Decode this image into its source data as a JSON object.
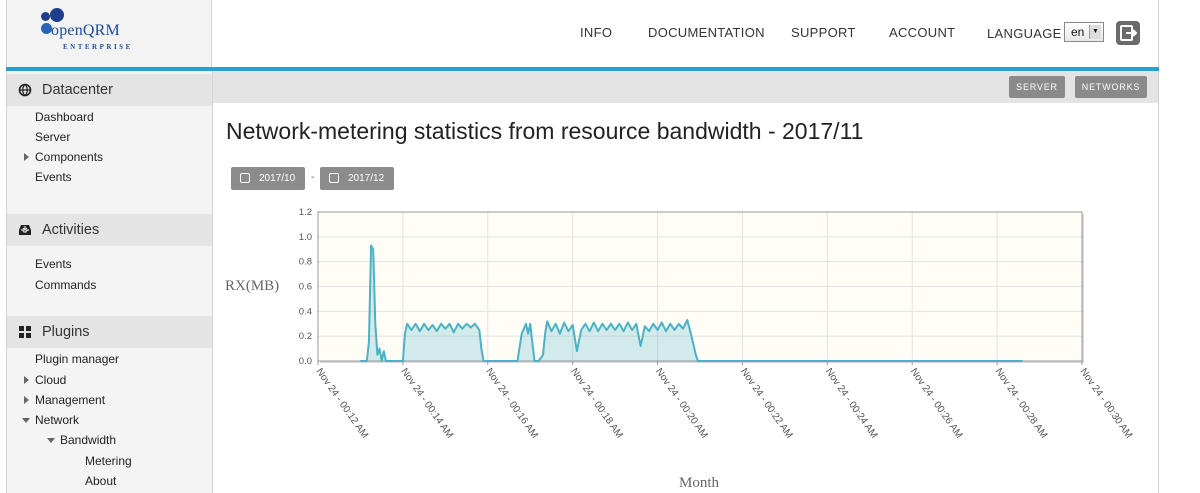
{
  "brand": {
    "name": "openQRM",
    "edition": "ENTERPRISE"
  },
  "top_nav": {
    "info": "INFO",
    "documentation": "DOCUMENTATION",
    "support": "SUPPORT",
    "account": "ACCOUNT",
    "language_label": "LANGUAGE",
    "language_value": "en"
  },
  "sidebar": {
    "datacenter": {
      "title": "Datacenter",
      "items": [
        "Dashboard",
        "Server",
        "Components",
        "Events"
      ]
    },
    "activities": {
      "title": "Activities",
      "items": [
        "Events",
        "Commands"
      ]
    },
    "plugins": {
      "title": "Plugins",
      "items": [
        "Plugin manager",
        "Cloud",
        "Management",
        "Network",
        "Bandwidth",
        "Metering",
        "About"
      ]
    }
  },
  "subnav": {
    "server": "SERVER",
    "networks": "NETWORKS"
  },
  "page": {
    "title": "Network-metering statistics from resource bandwidth - 2017/11",
    "prev_month": "2017/10",
    "separator": "-",
    "next_month": "2017/12"
  },
  "colors": {
    "accent": "#2a9fc7",
    "series": "#4bb2c5",
    "plot_bg": "#fffdf6"
  },
  "chart_data": {
    "type": "area",
    "title": "",
    "xlabel": "Month",
    "ylabel": "RX(MB)",
    "ylim": [
      0,
      1.2
    ],
    "yticks": [
      "0.0",
      "0.2",
      "0.4",
      "0.6",
      "0.8",
      "1.0",
      "1.2"
    ],
    "xticks": [
      "Nov 24 - 00:12 AM",
      "Nov 24 - 00:14 AM",
      "Nov 24 - 00:16 AM",
      "Nov 24 - 00:18 AM",
      "Nov 24 - 00:20 AM",
      "Nov 24 - 00:22 AM",
      "Nov 24 - 00:24 AM",
      "Nov 24 - 00:26 AM",
      "Nov 24 - 00:28 AM",
      "Nov 24 - 00:30 AM"
    ],
    "xlim_minutes": [
      12,
      30
    ],
    "grid": true,
    "series": [
      {
        "x": [
          13.0,
          13.15,
          13.2,
          13.25,
          13.3,
          13.35,
          13.4,
          13.45,
          13.5,
          13.55,
          13.6,
          13.65,
          13.7,
          14.0,
          14.05,
          14.1,
          14.2,
          14.3,
          14.4,
          14.5,
          14.6,
          14.7,
          14.8,
          14.9,
          15.0,
          15.1,
          15.2,
          15.3,
          15.4,
          15.5,
          15.6,
          15.7,
          15.8,
          15.85,
          15.9,
          16.7,
          16.8,
          16.9,
          16.95,
          17.0,
          17.05,
          17.1,
          17.2,
          17.3,
          17.35,
          17.4,
          17.5,
          17.6,
          17.7,
          17.8,
          17.9,
          18.0,
          18.1,
          18.2,
          18.3,
          18.4,
          18.5,
          18.6,
          18.7,
          18.8,
          18.9,
          19.0,
          19.1,
          19.2,
          19.3,
          19.4,
          19.5,
          19.6,
          19.7,
          19.8,
          19.9,
          20.0,
          20.1,
          20.2,
          20.3,
          20.4,
          20.5,
          20.6,
          20.7,
          20.8,
          20.9,
          20.95,
          21.0,
          28.6
        ],
        "y": [
          0,
          0,
          0.15,
          0.93,
          0.9,
          0.3,
          0.05,
          0.1,
          0,
          0.08,
          0,
          0,
          0,
          0,
          0.22,
          0.3,
          0.25,
          0.3,
          0.24,
          0.3,
          0.25,
          0.29,
          0.24,
          0.3,
          0.26,
          0.3,
          0.23,
          0.3,
          0.26,
          0.3,
          0.27,
          0.3,
          0.25,
          0.1,
          0,
          0,
          0.22,
          0.3,
          0.22,
          0.3,
          0.15,
          0,
          0,
          0.05,
          0.22,
          0.32,
          0.24,
          0.3,
          0.22,
          0.31,
          0.24,
          0.29,
          0.08,
          0.25,
          0.3,
          0.24,
          0.31,
          0.24,
          0.3,
          0.25,
          0.3,
          0.25,
          0.3,
          0.24,
          0.31,
          0.25,
          0.3,
          0.12,
          0.28,
          0.24,
          0.3,
          0.25,
          0.31,
          0.24,
          0.3,
          0.25,
          0.3,
          0.26,
          0.33,
          0.2,
          0.05,
          0,
          0,
          0
        ]
      }
    ]
  }
}
